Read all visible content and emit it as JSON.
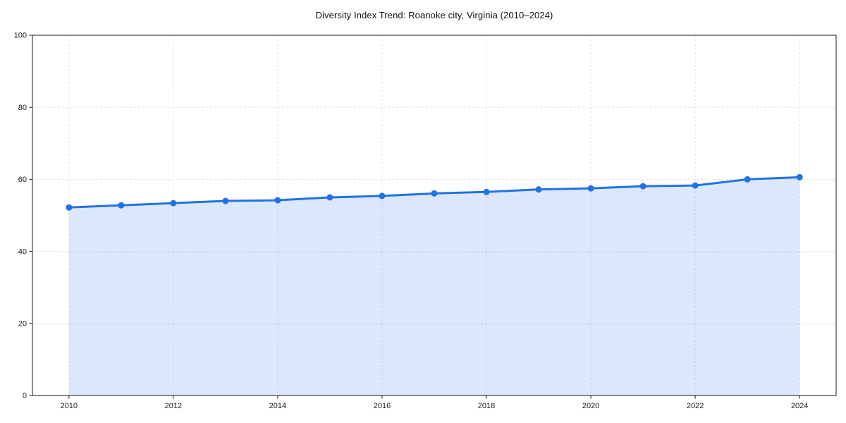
{
  "chart_data": {
    "type": "area",
    "title": "Diversity Index Trend: Roanoke city, Virginia (2010–2024)",
    "xlabel": "",
    "ylabel": "",
    "x": [
      2010,
      2011,
      2012,
      2013,
      2014,
      2015,
      2016,
      2017,
      2018,
      2019,
      2020,
      2021,
      2022,
      2023,
      2024
    ],
    "series": [
      {
        "name": "Diversity Index",
        "values": [
          52.2,
          52.8,
          53.4,
          54.0,
          54.2,
          55.0,
          55.4,
          56.1,
          56.5,
          57.2,
          57.5,
          58.1,
          58.3,
          60.0,
          60.6
        ]
      }
    ],
    "xlim": [
      2009.3,
      2024.7
    ],
    "ylim": [
      0,
      100
    ],
    "xticks": [
      2010,
      2012,
      2014,
      2016,
      2018,
      2020,
      2022,
      2024
    ],
    "yticks": [
      0,
      20,
      40,
      60,
      80,
      100
    ],
    "grid": true,
    "grid_style": "dashed",
    "legend_position": "none",
    "marker": "circle",
    "colors": {
      "line": "#2172e5",
      "marker": "#2172e5",
      "fill": "rgba(33,114,229,0.16)",
      "grid": "#e2e2e2",
      "spine": "#1a1a1a",
      "tick_label": "#1a1a1a",
      "title": "#111111"
    }
  }
}
